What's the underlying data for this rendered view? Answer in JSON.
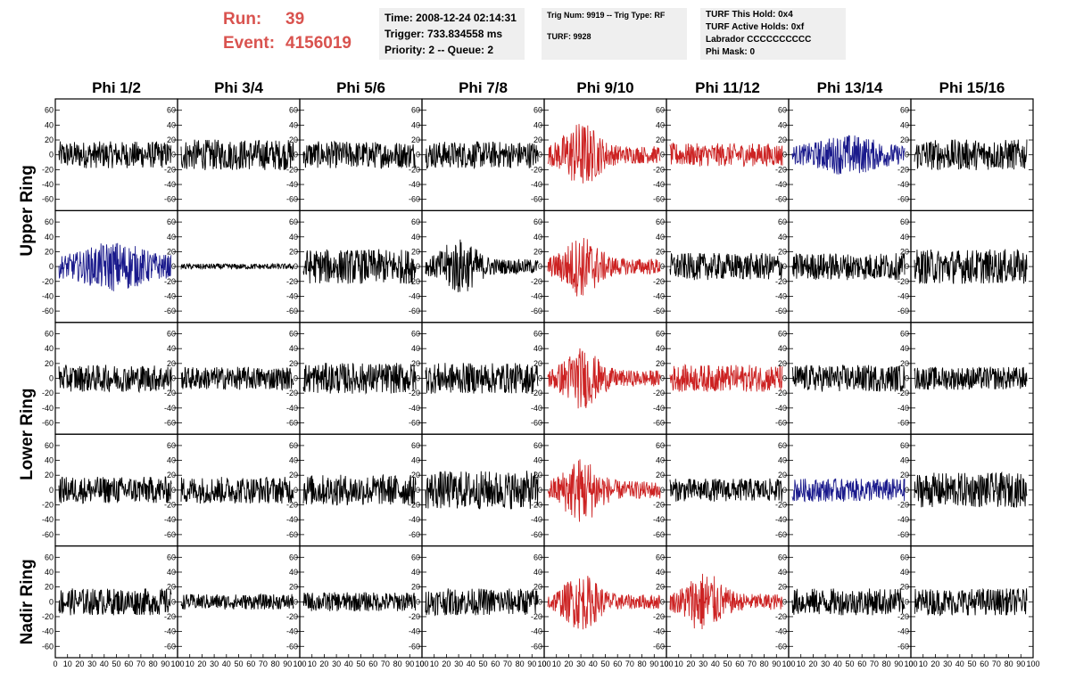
{
  "header": {
    "run_label": "Run:",
    "run_value": "39",
    "event_label": "Event:",
    "event_value": "4156019"
  },
  "info_boxes": {
    "box1": [
      "Time: 2008-12-24 02:14:31",
      "Trigger: 733.834558 ms",
      "Priority: 2 -- Queue: 2"
    ],
    "box2_line1": "Trig Num: 9919 -- Trig Type: RF",
    "box2_line2": "TURF: 9928",
    "box3": [
      "TURF This Hold: 0x4",
      "TURF Active Holds: 0xf",
      "Labrador CCCCCCCCCC",
      "Phi Mask: 0"
    ]
  },
  "colors": {
    "trace_default": "#000000",
    "trace_red": "#cc2222",
    "trace_blue": "#1a1a8c",
    "run_text": "#d9534f",
    "info_bg": "#efefef"
  },
  "chart_data": {
    "type": "line",
    "column_labels": [
      "Phi 1/2",
      "Phi 3/4",
      "Phi 5/6",
      "Phi 7/8",
      "Phi 9/10",
      "Phi 11/12",
      "Phi 13/14",
      "Phi 15/16"
    ],
    "row_groups": [
      {
        "label": "Upper Ring",
        "rows": [
          0,
          1
        ]
      },
      {
        "label": "Lower Ring",
        "rows": [
          2,
          3
        ]
      },
      {
        "label": "Nadir Ring",
        "rows": [
          4
        ]
      }
    ],
    "y_ticks": [
      -60,
      -40,
      -20,
      0,
      20,
      40,
      60
    ],
    "ylim": [
      -70,
      70
    ],
    "xlim": [
      0,
      100
    ],
    "x_tick_labels": [
      "0",
      "10",
      "20",
      "30",
      "40",
      "50",
      "60",
      "70",
      "80",
      "90",
      "100"
    ],
    "num_points": 260,
    "panels": [
      [
        {
          "color": "black",
          "amp": 14,
          "env": "flat"
        },
        {
          "color": "black",
          "amp": 16,
          "env": "flat"
        },
        {
          "color": "black",
          "amp": 14,
          "env": "flat"
        },
        {
          "color": "black",
          "amp": 14,
          "env": "flat"
        },
        {
          "color": "red",
          "amp": 26,
          "env": "burst"
        },
        {
          "color": "red",
          "amp": 12,
          "env": "flat"
        },
        {
          "color": "blue",
          "amp": 18,
          "env": "mid"
        },
        {
          "color": "black",
          "amp": 16,
          "env": "flat"
        }
      ],
      [
        {
          "color": "blue",
          "amp": 22,
          "env": "mid"
        },
        {
          "color": "black",
          "amp": 3,
          "env": "flat"
        },
        {
          "color": "black",
          "amp": 18,
          "env": "flat"
        },
        {
          "color": "black",
          "amp": 22,
          "env": "burst"
        },
        {
          "color": "red",
          "amp": 24,
          "env": "burst"
        },
        {
          "color": "black",
          "amp": 14,
          "env": "flat"
        },
        {
          "color": "black",
          "amp": 14,
          "env": "flat"
        },
        {
          "color": "black",
          "amp": 18,
          "env": "flat"
        }
      ],
      [
        {
          "color": "black",
          "amp": 14,
          "env": "flat"
        },
        {
          "color": "black",
          "amp": 12,
          "env": "flat"
        },
        {
          "color": "black",
          "amp": 16,
          "env": "flat"
        },
        {
          "color": "black",
          "amp": 16,
          "env": "flat"
        },
        {
          "color": "red",
          "amp": 24,
          "env": "burst"
        },
        {
          "color": "red",
          "amp": 14,
          "env": "flat"
        },
        {
          "color": "black",
          "amp": 14,
          "env": "flat"
        },
        {
          "color": "black",
          "amp": 12,
          "env": "flat"
        }
      ],
      [
        {
          "color": "black",
          "amp": 14,
          "env": "flat"
        },
        {
          "color": "black",
          "amp": 14,
          "env": "flat"
        },
        {
          "color": "black",
          "amp": 16,
          "env": "flat"
        },
        {
          "color": "black",
          "amp": 20,
          "env": "flat"
        },
        {
          "color": "red",
          "amp": 26,
          "env": "burst"
        },
        {
          "color": "black",
          "amp": 12,
          "env": "flat"
        },
        {
          "color": "blue",
          "amp": 12,
          "env": "flat"
        },
        {
          "color": "black",
          "amp": 18,
          "env": "flat"
        }
      ],
      [
        {
          "color": "black",
          "amp": 14,
          "env": "flat"
        },
        {
          "color": "black",
          "amp": 8,
          "env": "flat"
        },
        {
          "color": "black",
          "amp": 10,
          "env": "flat"
        },
        {
          "color": "black",
          "amp": 14,
          "env": "flat"
        },
        {
          "color": "red",
          "amp": 22,
          "env": "burst"
        },
        {
          "color": "red",
          "amp": 24,
          "env": "burst"
        },
        {
          "color": "black",
          "amp": 14,
          "env": "flat"
        },
        {
          "color": "black",
          "amp": 14,
          "env": "flat"
        }
      ]
    ]
  }
}
